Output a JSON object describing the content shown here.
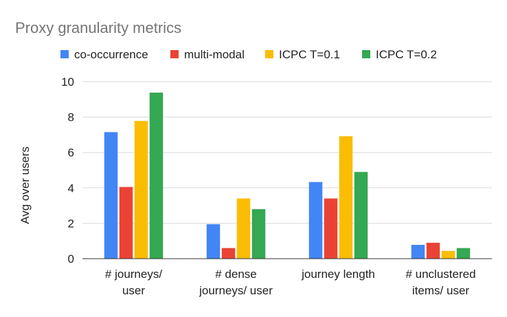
{
  "chart_data": {
    "type": "bar",
    "title": "Proxy granularity metrics",
    "xlabel": "",
    "ylabel": "Avg over users",
    "categories": [
      [
        "# journeys/",
        "user"
      ],
      [
        "# dense",
        "journeys/ user"
      ],
      [
        "journey length"
      ],
      [
        "# unclustered",
        "items/ user"
      ]
    ],
    "series": [
      {
        "name": "co-occurrence",
        "color": "#4285F4",
        "values": [
          7.15,
          1.95,
          4.33,
          0.78
        ]
      },
      {
        "name": "multi-modal",
        "color": "#EA4335",
        "values": [
          4.05,
          0.6,
          3.4,
          0.9
        ]
      },
      {
        "name": "ICPC T=0.1",
        "color": "#FBBC04",
        "values": [
          7.78,
          3.4,
          6.92,
          0.44
        ]
      },
      {
        "name": "ICPC T=0.2",
        "color": "#34A853",
        "values": [
          9.38,
          2.8,
          4.9,
          0.6
        ]
      }
    ],
    "ylim": [
      0,
      10
    ],
    "yticks": [
      "0",
      "2",
      "4",
      "6",
      "8",
      "10"
    ],
    "grid": true,
    "legend_position": "top"
  }
}
